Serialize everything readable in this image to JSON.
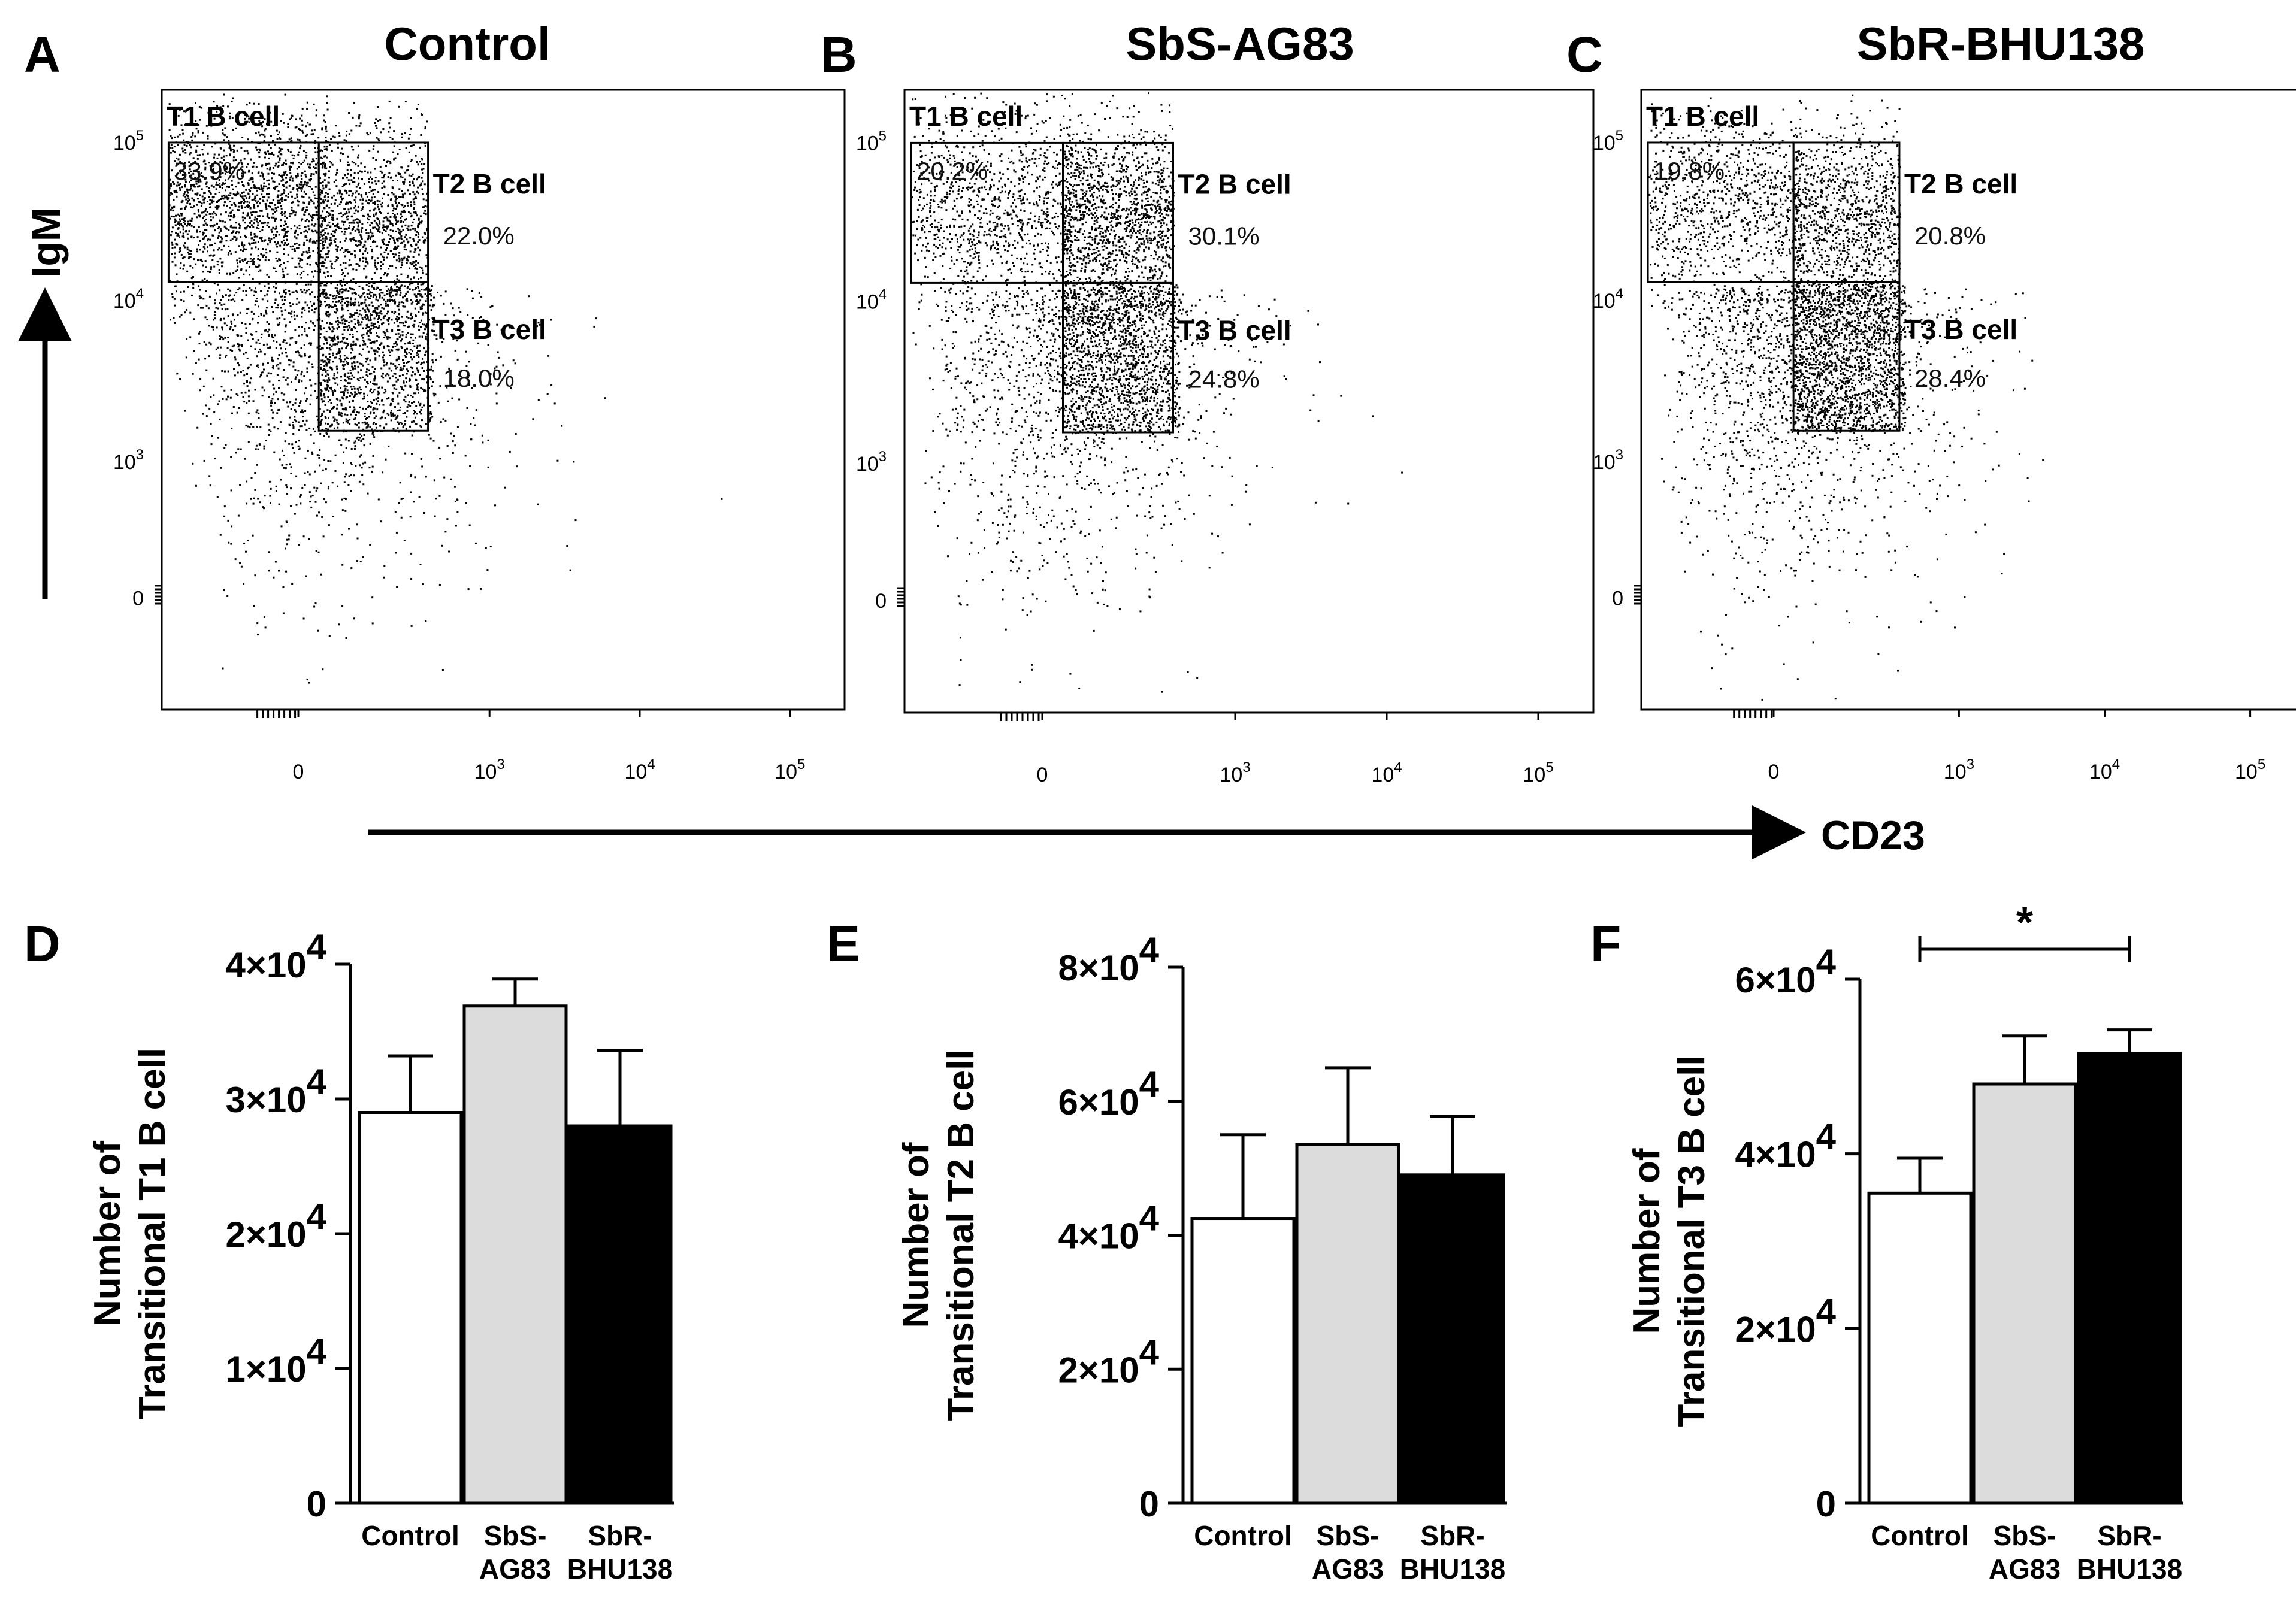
{
  "flow_panels": [
    {
      "letter": "A",
      "title": "Control",
      "gates": [
        {
          "label": "T1 B cell",
          "percent": "33.9%"
        },
        {
          "label": "T2 B cell",
          "percent": "22.0%"
        },
        {
          "label": "T3 B cell",
          "percent": "18.0%"
        }
      ]
    },
    {
      "letter": "B",
      "title": "SbS-AG83",
      "gates": [
        {
          "label": "T1 B cell",
          "percent": "20.2%"
        },
        {
          "label": "T2 B cell",
          "percent": "30.1%"
        },
        {
          "label": "T3 B cell",
          "percent": "24.8%"
        }
      ]
    },
    {
      "letter": "C",
      "title": "SbR-BHU138",
      "gates": [
        {
          "label": "T1 B cell",
          "percent": "19.8%"
        },
        {
          "label": "T2 B cell",
          "percent": "20.8%"
        },
        {
          "label": "T3 B cell",
          "percent": "28.4%"
        }
      ]
    }
  ],
  "flow_axes": {
    "y_label": "IgM",
    "x_label": "CD23",
    "y_ticks": [
      {
        "base": "10",
        "exp": "5"
      },
      {
        "base": "10",
        "exp": "4"
      },
      {
        "base": "10",
        "exp": "3"
      },
      {
        "base": "0",
        "exp": ""
      }
    ],
    "x_ticks": [
      {
        "base": "0",
        "exp": ""
      },
      {
        "base": "10",
        "exp": "3"
      },
      {
        "base": "10",
        "exp": "4"
      },
      {
        "base": "10",
        "exp": "5"
      }
    ]
  },
  "chart_data": [
    {
      "type": "bar",
      "letter": "D",
      "title": "",
      "ylabel_lines": [
        "Number of",
        "Transitional T1 B cell"
      ],
      "categories": [
        [
          "Control"
        ],
        [
          "SbS-",
          "AG83"
        ],
        [
          "SbR-",
          "BHU138"
        ]
      ],
      "values": [
        29000,
        36900,
        28000
      ],
      "errors": [
        4200,
        2000,
        5600
      ],
      "ylim": [
        0,
        40000
      ],
      "yticks": [
        {
          "value": 0,
          "label": "0",
          "exp": ""
        },
        {
          "value": 10000,
          "label": "1×10",
          "exp": "4"
        },
        {
          "value": 20000,
          "label": "2×10",
          "exp": "4"
        },
        {
          "value": 30000,
          "label": "3×10",
          "exp": "4"
        },
        {
          "value": 40000,
          "label": "4×10",
          "exp": "4"
        }
      ],
      "colors": [
        "#ffffff",
        "#dcdcdc",
        "#000000"
      ],
      "significance": null
    },
    {
      "type": "bar",
      "letter": "E",
      "title": "",
      "ylabel_lines": [
        "Number of",
        "Transitional T2 B cell"
      ],
      "categories": [
        [
          "Control"
        ],
        [
          "SbS-",
          "AG83"
        ],
        [
          "SbR-",
          "BHU138"
        ]
      ],
      "values": [
        42500,
        53500,
        49000
      ],
      "errors": [
        12500,
        11500,
        8700
      ],
      "ylim": [
        0,
        80000
      ],
      "yticks": [
        {
          "value": 0,
          "label": "0",
          "exp": ""
        },
        {
          "value": 20000,
          "label": "2×10",
          "exp": "4"
        },
        {
          "value": 40000,
          "label": "4×10",
          "exp": "4"
        },
        {
          "value": 60000,
          "label": "6×10",
          "exp": "4"
        },
        {
          "value": 80000,
          "label": "8×10",
          "exp": "4"
        }
      ],
      "colors": [
        "#ffffff",
        "#dcdcdc",
        "#000000"
      ],
      "significance": null
    },
    {
      "type": "bar",
      "letter": "F",
      "title": "",
      "ylabel_lines": [
        "Number of",
        "Transitional T3 B cell"
      ],
      "categories": [
        [
          "Control"
        ],
        [
          "SbS-",
          "AG83"
        ],
        [
          "SbR-",
          "BHU138"
        ]
      ],
      "values": [
        35500,
        48000,
        51500
      ],
      "errors": [
        4000,
        5500,
        2700
      ],
      "ylim": [
        0,
        60000
      ],
      "yticks": [
        {
          "value": 0,
          "label": "0",
          "exp": ""
        },
        {
          "value": 20000,
          "label": "2×10",
          "exp": "4"
        },
        {
          "value": 40000,
          "label": "4×10",
          "exp": "4"
        },
        {
          "value": 60000,
          "label": "6×10",
          "exp": "4"
        }
      ],
      "colors": [
        "#ffffff",
        "#dcdcdc",
        "#000000"
      ],
      "significance": {
        "from": 0,
        "to": 2,
        "label": "*"
      }
    }
  ]
}
